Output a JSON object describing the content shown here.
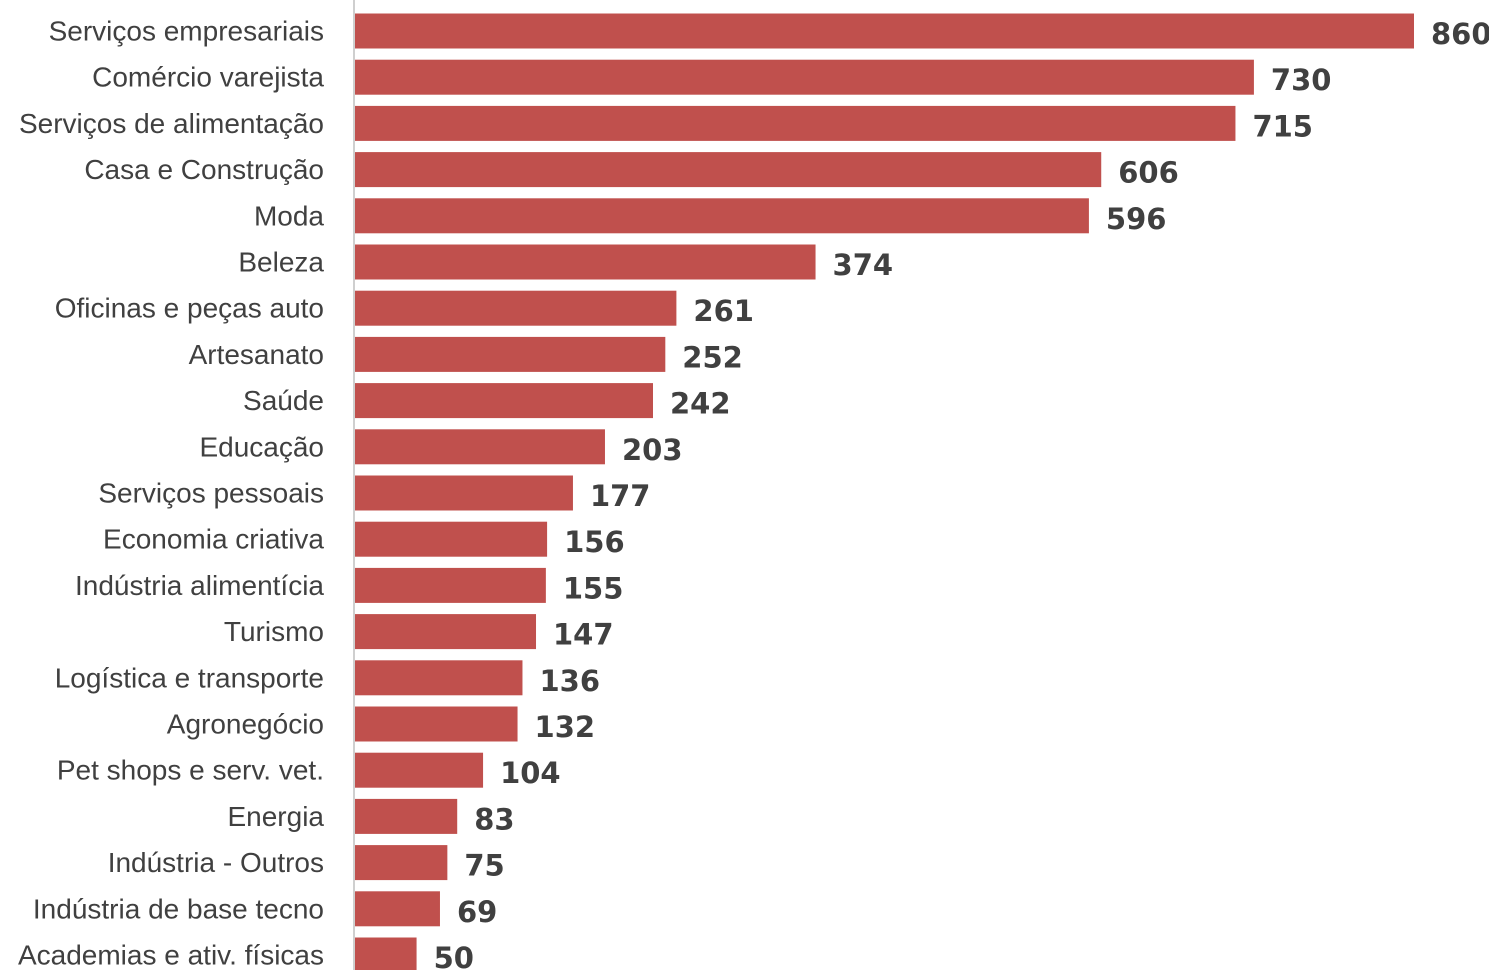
{
  "chart_data": {
    "type": "bar",
    "orientation": "horizontal",
    "title": "",
    "xlabel": "",
    "ylabel": "",
    "categories": [
      "Serviços empresariais",
      "Comércio varejista",
      "Serviços de alimentação",
      "Casa e Construção",
      "Moda",
      "Beleza",
      "Oficinas e peças auto",
      "Artesanato",
      "Saúde",
      "Educação",
      "Serviços pessoais",
      "Economia criativa",
      "Indústria alimentícia",
      "Turismo",
      "Logística e transporte",
      "Agronegócio",
      "Pet shops e serv. vet.",
      "Energia",
      "Indústria - Outros",
      "Indústria de base tecno",
      "Academias e ativ. físicas"
    ],
    "values": [
      860,
      730,
      715,
      606,
      596,
      374,
      261,
      252,
      242,
      203,
      177,
      156,
      155,
      147,
      136,
      132,
      104,
      83,
      75,
      69,
      50
    ],
    "data_labels": [
      "860",
      "730",
      "715",
      "606",
      "596",
      "374",
      "261",
      "252",
      "242",
      "203",
      "177",
      "156",
      "155",
      "147",
      "136",
      "132",
      "104",
      "83",
      "75",
      "69",
      "50"
    ],
    "xlim": [
      0,
      860
    ],
    "grid": false,
    "legend": "none",
    "bar_color": "#C0504D",
    "axis_color": "#BFBFBF",
    "text_color": "#404040"
  }
}
